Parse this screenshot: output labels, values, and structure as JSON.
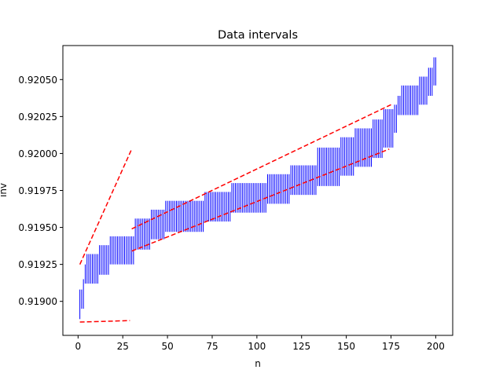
{
  "chart_data": {
    "type": "errorbar",
    "title": "Data intervals",
    "xlabel": "n",
    "ylabel": "inv",
    "xlim": [
      -8.5,
      209.5
    ],
    "ylim": [
      0.91877,
      0.92073
    ],
    "x_ticks": [
      0,
      25,
      50,
      75,
      100,
      125,
      150,
      175,
      200
    ],
    "y_ticks": [
      0.919,
      0.91925,
      0.9195,
      0.91975,
      0.92,
      0.92025,
      0.9205
    ],
    "x_tick_labels": [
      "0",
      "25",
      "50",
      "75",
      "100",
      "125",
      "150",
      "175",
      "200"
    ],
    "y_tick_labels": [
      "0.91900",
      "0.91925",
      "0.91950",
      "0.91975",
      "0.92000",
      "0.92025",
      "0.92050"
    ],
    "colors": {
      "intervals": "#0000ff",
      "guides": "#ff0000"
    },
    "interval_groups": [
      {
        "n_start": 1,
        "n_end": 1,
        "low": 0.91888,
        "high": 0.91908
      },
      {
        "n_start": 2,
        "n_end": 2,
        "low": 0.91895,
        "high": 0.91908
      },
      {
        "n_start": 3,
        "n_end": 3,
        "low": 0.91895,
        "high": 0.91915
      },
      {
        "n_start": 4,
        "n_end": 4,
        "low": 0.91912,
        "high": 0.91925
      },
      {
        "n_start": 5,
        "n_end": 11,
        "low": 0.91912,
        "high": 0.91932
      },
      {
        "n_start": 12,
        "n_end": 17,
        "low": 0.91918,
        "high": 0.91938
      },
      {
        "n_start": 18,
        "n_end": 31,
        "low": 0.91925,
        "high": 0.91944
      },
      {
        "n_start": 32,
        "n_end": 40,
        "low": 0.91935,
        "high": 0.91956
      },
      {
        "n_start": 41,
        "n_end": 48,
        "low": 0.91942,
        "high": 0.91962
      },
      {
        "n_start": 49,
        "n_end": 57,
        "low": 0.91947,
        "high": 0.91968
      },
      {
        "n_start": 58,
        "n_end": 70,
        "low": 0.91947,
        "high": 0.91968
      },
      {
        "n_start": 71,
        "n_end": 85,
        "low": 0.91954,
        "high": 0.91974
      },
      {
        "n_start": 86,
        "n_end": 105,
        "low": 0.9196,
        "high": 0.9198
      },
      {
        "n_start": 106,
        "n_end": 118,
        "low": 0.91966,
        "high": 0.91986
      },
      {
        "n_start": 119,
        "n_end": 133,
        "low": 0.91972,
        "high": 0.91992
      },
      {
        "n_start": 134,
        "n_end": 146,
        "low": 0.91978,
        "high": 0.92004
      },
      {
        "n_start": 147,
        "n_end": 154,
        "low": 0.91985,
        "high": 0.92011
      },
      {
        "n_start": 155,
        "n_end": 164,
        "low": 0.91991,
        "high": 0.92017
      },
      {
        "n_start": 165,
        "n_end": 170,
        "low": 0.91997,
        "high": 0.92023
      },
      {
        "n_start": 171,
        "n_end": 176,
        "low": 0.92004,
        "high": 0.9203
      },
      {
        "n_start": 177,
        "n_end": 178,
        "low": 0.92014,
        "high": 0.92033
      },
      {
        "n_start": 179,
        "n_end": 180,
        "low": 0.92026,
        "high": 0.92039
      },
      {
        "n_start": 181,
        "n_end": 190,
        "low": 0.92026,
        "high": 0.92046
      },
      {
        "n_start": 191,
        "n_end": 195,
        "low": 0.92033,
        "high": 0.92052
      },
      {
        "n_start": 196,
        "n_end": 198,
        "low": 0.92039,
        "high": 0.92058
      },
      {
        "n_start": 199,
        "n_end": 200,
        "low": 0.92046,
        "high": 0.92065
      }
    ],
    "guide_lines": [
      {
        "x": [
          1,
          30
        ],
        "y": [
          0.91925,
          0.92003
        ]
      },
      {
        "x": [
          1,
          29
        ],
        "y": [
          0.91886,
          0.91887
        ]
      },
      {
        "x": [
          30,
          175
        ],
        "y": [
          0.91949,
          0.92033
        ]
      },
      {
        "x": [
          30,
          174
        ],
        "y": [
          0.91934,
          0.92003
        ]
      }
    ]
  }
}
